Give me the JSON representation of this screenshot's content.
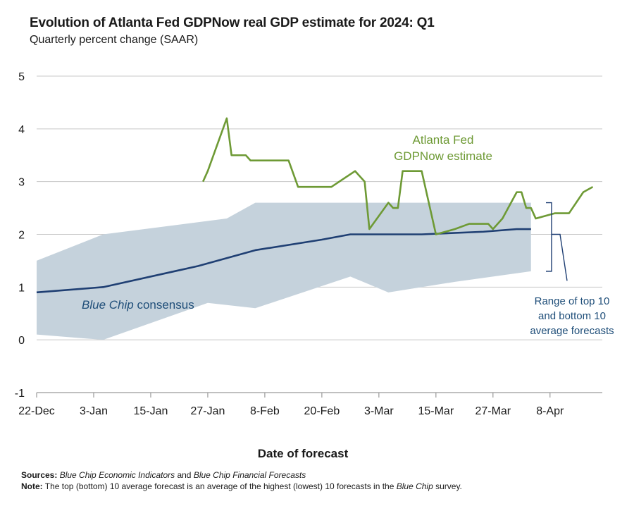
{
  "header": {
    "title": "Evolution of Atlanta Fed GDPNow real GDP estimate for 2024: Q1",
    "subtitle": "Quarterly percent change (SAAR)"
  },
  "footer": {
    "xlabel": "Date of forecast",
    "sources_label": "Sources:",
    "sources_part1": "Blue Chip Economic Indicators",
    "sources_part2": " and ",
    "sources_part3": "Blue Chip Financial Forecasts",
    "note_label": "Note:",
    "note_part1": " The top (bottom) 10 average forecast is an average of the highest (lowest) 10 forecasts in the ",
    "note_part2": "Blue Chip",
    "note_part3": " survey."
  },
  "colors": {
    "gdpnow": "#6e9a35",
    "consensus": "#1f3f73",
    "range": "#c5d2dc",
    "grid": "#c8c8c8",
    "annotation_text": "#1f4e79"
  },
  "chart_data": {
    "type": "line",
    "title": "Evolution of Atlanta Fed GDPNow real GDP estimate for 2024: Q1",
    "subtitle": "Quarterly percent change (SAAR)",
    "xlabel": "Date of forecast",
    "ylabel": "",
    "ylim": [
      -1,
      5
    ],
    "yticks": [
      -1,
      0,
      1,
      2,
      3,
      4,
      5
    ],
    "xlim": [
      "2023-12-22",
      "2024-04-19"
    ],
    "x_ticks": [
      {
        "date": "2023-12-22",
        "label": "22-Dec"
      },
      {
        "date": "2024-01-03",
        "label": "3-Jan"
      },
      {
        "date": "2024-01-15",
        "label": "15-Jan"
      },
      {
        "date": "2024-01-27",
        "label": "27-Jan"
      },
      {
        "date": "2024-02-08",
        "label": "8-Feb"
      },
      {
        "date": "2024-02-20",
        "label": "20-Feb"
      },
      {
        "date": "2024-03-03",
        "label": "3-Mar"
      },
      {
        "date": "2024-03-15",
        "label": "15-Mar"
      },
      {
        "date": "2024-03-27",
        "label": "27-Mar"
      },
      {
        "date": "2024-04-08",
        "label": "8-Apr"
      }
    ],
    "grid": true,
    "annotations": {
      "gdpnow": [
        "Atlanta Fed",
        "GDPNow estimate"
      ],
      "consensus_italic": "Blue Chip",
      "consensus_rest": " consensus",
      "range": [
        "Range of top 10",
        "and bottom 10",
        "average forecasts"
      ]
    },
    "series": [
      {
        "name": "Atlanta Fed GDPNow estimate",
        "points": [
          [
            "2024-01-26",
            3.0
          ],
          [
            "2024-01-27",
            3.2
          ],
          [
            "2024-01-31",
            4.2
          ],
          [
            "2024-02-01",
            3.5
          ],
          [
            "2024-02-04",
            3.5
          ],
          [
            "2024-02-05",
            3.4
          ],
          [
            "2024-02-13",
            3.4
          ],
          [
            "2024-02-15",
            2.9
          ],
          [
            "2024-02-22",
            2.9
          ],
          [
            "2024-02-27",
            3.2
          ],
          [
            "2024-02-29",
            3.0
          ],
          [
            "2024-03-01",
            2.1
          ],
          [
            "2024-03-05",
            2.6
          ],
          [
            "2024-03-06",
            2.5
          ],
          [
            "2024-03-07",
            2.5
          ],
          [
            "2024-03-08",
            3.2
          ],
          [
            "2024-03-12",
            3.2
          ],
          [
            "2024-03-15",
            2.0
          ],
          [
            "2024-03-19",
            2.1
          ],
          [
            "2024-03-22",
            2.2
          ],
          [
            "2024-03-26",
            2.2
          ],
          [
            "2024-03-27",
            2.1
          ],
          [
            "2024-03-29",
            2.3
          ],
          [
            "2024-04-01",
            2.8
          ],
          [
            "2024-04-02",
            2.8
          ],
          [
            "2024-04-03",
            2.5
          ],
          [
            "2024-04-04",
            2.5
          ],
          [
            "2024-04-05",
            2.3
          ],
          [
            "2024-04-09",
            2.4
          ],
          [
            "2024-04-12",
            2.4
          ],
          [
            "2024-04-15",
            2.8
          ],
          [
            "2024-04-17",
            2.9
          ]
        ]
      },
      {
        "name": "Blue Chip consensus",
        "points": [
          [
            "2023-12-22",
            0.9
          ],
          [
            "2024-01-05",
            1.0
          ],
          [
            "2024-01-25",
            1.4
          ],
          [
            "2024-02-06",
            1.7
          ],
          [
            "2024-02-20",
            1.9
          ],
          [
            "2024-02-26",
            2.0
          ],
          [
            "2024-03-12",
            2.0
          ],
          [
            "2024-03-25",
            2.05
          ],
          [
            "2024-04-01",
            2.1
          ],
          [
            "2024-04-04",
            2.1
          ]
        ]
      },
      {
        "name": "Range of top 10 and bottom 10 average forecasts",
        "type": "area",
        "top": [
          [
            "2023-12-22",
            1.5
          ],
          [
            "2024-01-05",
            2.0
          ],
          [
            "2024-01-31",
            2.3
          ],
          [
            "2024-02-06",
            2.6
          ],
          [
            "2024-04-04",
            2.6
          ]
        ],
        "bottom": [
          [
            "2023-12-22",
            0.1
          ],
          [
            "2024-01-05",
            0.0
          ],
          [
            "2024-01-27",
            0.7
          ],
          [
            "2024-02-06",
            0.6
          ],
          [
            "2024-02-26",
            1.2
          ],
          [
            "2024-03-05",
            0.9
          ],
          [
            "2024-03-19",
            1.1
          ],
          [
            "2024-04-04",
            1.3
          ]
        ]
      }
    ]
  }
}
